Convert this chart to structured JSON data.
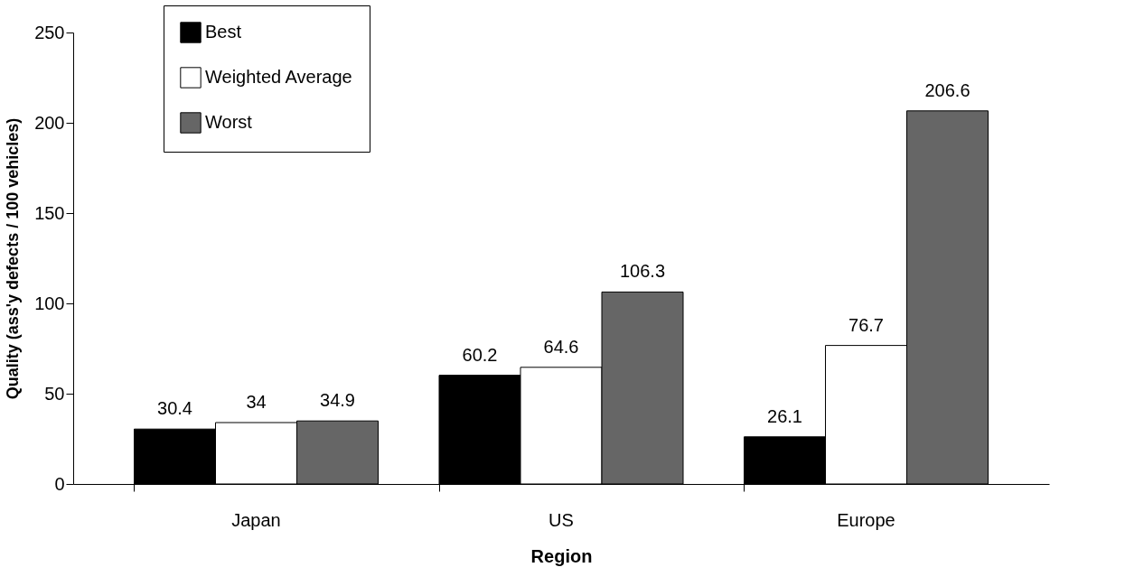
{
  "chart_data": {
    "type": "bar",
    "xlabel": "Region",
    "ylabel": "Quality (ass'y defects / 100 vehicles)",
    "categories": [
      "Japan",
      "US",
      "Europe"
    ],
    "series": [
      {
        "name": "Best",
        "color": "#000000",
        "values": [
          30.4,
          60.2,
          26.1
        ]
      },
      {
        "name": "Weighted Average",
        "color": "#ffffff",
        "values": [
          34,
          64.6,
          76.7
        ]
      },
      {
        "name": "Worst",
        "color": "#666666",
        "values": [
          34.9,
          106.3,
          206.6
        ]
      }
    ],
    "ylim": [
      0,
      250
    ],
    "yticks": [
      0,
      50,
      100,
      150,
      200,
      250
    ],
    "grid": false,
    "legend": "top left",
    "data_labels": true
  }
}
